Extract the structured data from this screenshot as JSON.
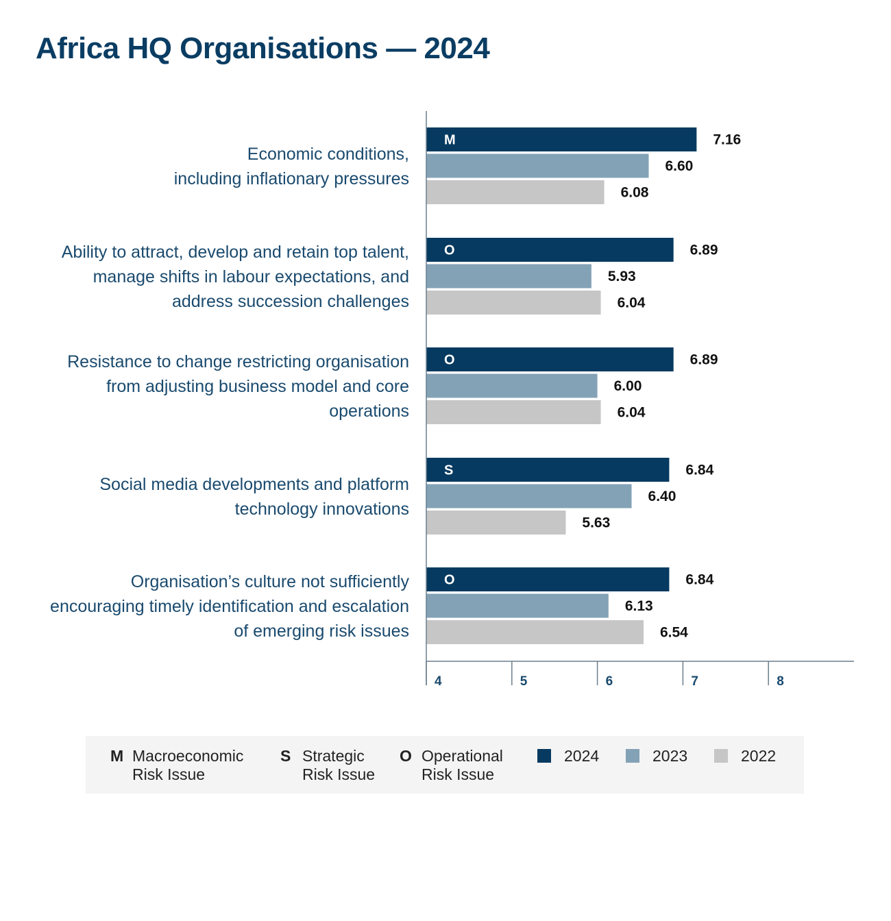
{
  "title": "Africa HQ Organisations — 2024",
  "chart_data": {
    "type": "bar",
    "orientation": "horizontal",
    "categories": [
      "Economic conditions,\nincluding inflationary pressures",
      "Ability to attract, develop and retain top talent,\nmanage shifts in labour expectations, and\naddress succession challenges",
      "Resistance to change restricting organisation\nfrom adjusting business model and core\noperations",
      "Social media developments and platform\ntechnology innovations",
      "Organisation’s culture not sufficiently\nencouraging timely identification and escalation\nof emerging risk issues"
    ],
    "risk_types": [
      "M",
      "O",
      "O",
      "S",
      "O"
    ],
    "series": [
      {
        "name": "2024",
        "color": "#063a60",
        "values": [
          7.16,
          6.89,
          6.89,
          6.84,
          6.84
        ]
      },
      {
        "name": "2023",
        "color": "#83a2b6",
        "values": [
          6.6,
          5.93,
          6.0,
          6.4,
          6.13
        ]
      },
      {
        "name": "2022",
        "color": "#c6c6c6",
        "values": [
          6.08,
          6.04,
          6.04,
          5.63,
          6.54
        ]
      }
    ],
    "value_labels": [
      [
        "7.16",
        "6.60",
        "6.08"
      ],
      [
        "6.89",
        "5.93",
        "6.04"
      ],
      [
        "6.89",
        "6.00",
        "6.04"
      ],
      [
        "6.84",
        "6.40",
        "5.63"
      ],
      [
        "6.84",
        "6.13",
        "6.54"
      ]
    ],
    "xlim": [
      4,
      9
    ],
    "xticks": [
      "4",
      "5",
      "6",
      "7",
      "8"
    ],
    "grid": false,
    "legend_position": "bottom"
  },
  "legend": {
    "types": [
      {
        "key": "M",
        "label": "Macroeconomic\nRisk Issue"
      },
      {
        "key": "S",
        "label": "Strategic\nRisk Issue"
      },
      {
        "key": "O",
        "label": "Operational\nRisk Issue"
      }
    ],
    "years": [
      {
        "label": "2024",
        "color": "#063a60"
      },
      {
        "label": "2023",
        "color": "#83a2b6"
      },
      {
        "label": "2022",
        "color": "#c6c6c6"
      }
    ]
  }
}
